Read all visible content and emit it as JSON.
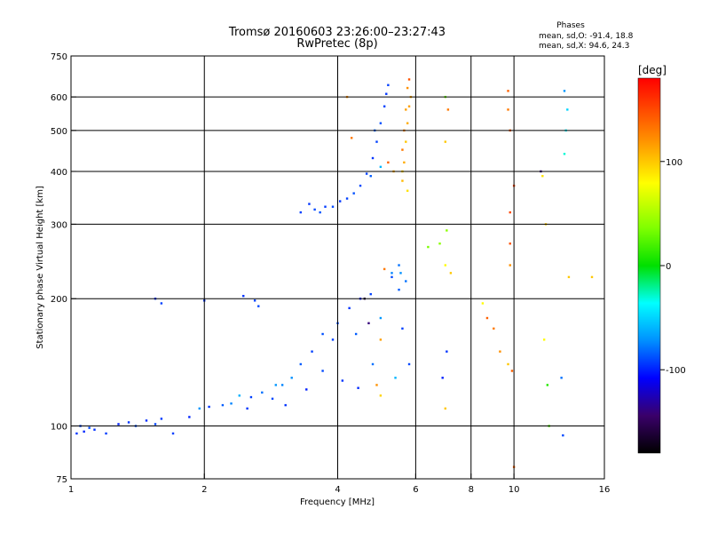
{
  "chart_data": {
    "type": "scatter",
    "title": "Tromsø 20160603 23:26:00–23:27:43",
    "subtitle": "RwPretec (8p)",
    "stats": {
      "heading": "Phases",
      "line_o": "mean, sd,O: -91.4, 18.8",
      "line_x": "mean, sd,X:  94.6, 24.3"
    },
    "xlabel": "Frequency [MHz]",
    "ylabel": "Stationary phase Virtual Height [km]",
    "x_scale": "log",
    "y_scale": "log",
    "xlim": [
      1,
      16
    ],
    "ylim": [
      75,
      750
    ],
    "x_ticks": [
      1,
      2,
      4,
      6,
      8,
      10,
      16
    ],
    "x_tick_labels": [
      "1",
      "2",
      "4",
      "6",
      "8",
      "10",
      "16"
    ],
    "y_ticks": [
      75,
      100,
      200,
      300,
      400,
      500,
      600,
      750
    ],
    "y_tick_labels": [
      "75",
      "100",
      "200",
      "300",
      "400",
      "500",
      "600",
      "750"
    ],
    "grid": true,
    "colorbar": {
      "label": "[deg]",
      "range": [
        -180,
        180
      ],
      "ticks": [
        100,
        0,
        -100
      ],
      "tick_labels": [
        "100",
        "0",
        "-100"
      ]
    },
    "series": [
      {
        "name": "",
        "points": [
          [
            1.03,
            96,
            -95
          ],
          [
            1.05,
            100,
            -92
          ],
          [
            1.07,
            97,
            -98
          ],
          [
            1.1,
            99,
            -90
          ],
          [
            1.13,
            98,
            -96
          ],
          [
            1.2,
            96,
            -93
          ],
          [
            1.28,
            101,
            -100
          ],
          [
            1.35,
            102,
            -95
          ],
          [
            1.4,
            100,
            -90
          ],
          [
            1.48,
            103,
            -97
          ],
          [
            1.55,
            101,
            -92
          ],
          [
            1.6,
            104,
            -94
          ],
          [
            1.7,
            96,
            -92
          ],
          [
            1.85,
            105,
            -99
          ],
          [
            1.95,
            110,
            -70
          ],
          [
            2.05,
            111,
            -95
          ],
          [
            2.2,
            112,
            -85
          ],
          [
            2.3,
            113,
            -75
          ],
          [
            2.4,
            118,
            -62
          ],
          [
            2.5,
            110,
            -95
          ],
          [
            2.55,
            117,
            -92
          ],
          [
            2.7,
            120,
            -80
          ],
          [
            2.85,
            116,
            -90
          ],
          [
            2.9,
            125,
            -70
          ],
          [
            3.0,
            125,
            -75
          ],
          [
            3.05,
            112,
            -95
          ],
          [
            3.15,
            130,
            -72
          ],
          [
            3.3,
            140,
            -85
          ],
          [
            3.4,
            122,
            -100
          ],
          [
            3.5,
            150,
            -92
          ],
          [
            3.7,
            135,
            -90
          ],
          [
            3.7,
            165,
            -88
          ],
          [
            3.9,
            160,
            -92
          ],
          [
            4.0,
            175,
            -90
          ],
          [
            4.1,
            128,
            -95
          ],
          [
            4.25,
            190,
            -95
          ],
          [
            4.4,
            165,
            -85
          ],
          [
            4.45,
            123,
            -98
          ],
          [
            4.5,
            200,
            -100
          ],
          [
            4.75,
            205,
            -92
          ],
          [
            4.8,
            140,
            -80
          ],
          [
            4.9,
            125,
            120
          ],
          [
            5.0,
            180,
            -70
          ],
          [
            5.1,
            235,
            130
          ],
          [
            5.3,
            230,
            -75
          ],
          [
            5.4,
            130,
            -60
          ],
          [
            1.55,
            200,
            -95
          ],
          [
            1.6,
            195,
            -92
          ],
          [
            2.0,
            198,
            -95
          ],
          [
            2.45,
            203,
            -95
          ],
          [
            2.6,
            198,
            -92
          ],
          [
            2.65,
            192,
            -90
          ],
          [
            5.3,
            225,
            -90
          ],
          [
            5.5,
            210,
            -85
          ],
          [
            5.5,
            240,
            -80
          ],
          [
            5.55,
            230,
            -72
          ],
          [
            5.6,
            170,
            -92
          ],
          [
            5.7,
            220,
            -80
          ],
          [
            5.8,
            140,
            -90
          ],
          [
            3.3,
            320,
            -92
          ],
          [
            3.45,
            335,
            -95
          ],
          [
            3.55,
            325,
            -90
          ],
          [
            3.65,
            320,
            -88
          ],
          [
            3.75,
            330,
            -93
          ],
          [
            3.9,
            330,
            -90
          ],
          [
            4.05,
            340,
            -95
          ],
          [
            4.2,
            345,
            -92
          ],
          [
            4.35,
            355,
            -88
          ],
          [
            4.5,
            370,
            -90
          ],
          [
            4.65,
            395,
            -92
          ],
          [
            4.8,
            430,
            -95
          ],
          [
            4.9,
            470,
            -92
          ],
          [
            5.0,
            520,
            -88
          ],
          [
            5.1,
            570,
            -92
          ],
          [
            5.15,
            610,
            -95
          ],
          [
            5.2,
            640,
            -92
          ],
          [
            4.75,
            390,
            -85
          ],
          [
            5.0,
            410,
            -60
          ],
          [
            4.85,
            500,
            -82
          ],
          [
            5.2,
            420,
            140
          ],
          [
            5.35,
            400,
            110
          ],
          [
            5.6,
            380,
            105
          ],
          [
            5.65,
            420,
            110
          ],
          [
            5.7,
            470,
            100
          ],
          [
            5.75,
            520,
            110
          ],
          [
            5.8,
            570,
            115
          ],
          [
            5.85,
            600,
            112
          ],
          [
            5.6,
            450,
            130
          ],
          [
            5.65,
            500,
            125
          ],
          [
            5.7,
            560,
            115
          ],
          [
            5.75,
            630,
            120
          ],
          [
            5.8,
            660,
            145
          ],
          [
            5.6,
            400,
            95
          ],
          [
            5.75,
            360,
            90
          ],
          [
            7.0,
            600,
            30
          ],
          [
            7.1,
            560,
            130
          ],
          [
            7.0,
            470,
            100
          ],
          [
            7.05,
            290,
            40
          ],
          [
            6.8,
            270,
            40
          ],
          [
            7.0,
            240,
            80
          ],
          [
            7.2,
            230,
            100
          ],
          [
            6.4,
            265,
            35
          ],
          [
            7.05,
            150,
            -95
          ],
          [
            6.9,
            130,
            -100
          ],
          [
            7.0,
            110,
            100
          ],
          [
            8.5,
            195,
            80
          ],
          [
            8.7,
            180,
            140
          ],
          [
            9.0,
            170,
            130
          ],
          [
            9.3,
            150,
            120
          ],
          [
            9.7,
            140,
            100
          ],
          [
            9.7,
            620,
            140
          ],
          [
            9.7,
            560,
            130
          ],
          [
            9.8,
            500,
            140
          ],
          [
            9.8,
            320,
            150
          ],
          [
            9.8,
            270,
            145
          ],
          [
            10.0,
            370,
            150
          ],
          [
            9.8,
            240,
            120
          ],
          [
            9.9,
            135,
            140
          ],
          [
            10.0,
            80,
            140
          ],
          [
            11.5,
            400,
            -140
          ],
          [
            11.6,
            390,
            90
          ],
          [
            11.8,
            300,
            100
          ],
          [
            11.7,
            160,
            80
          ],
          [
            11.9,
            125,
            10
          ],
          [
            12.0,
            100,
            20
          ],
          [
            13.0,
            620,
            -70
          ],
          [
            13.2,
            560,
            -50
          ],
          [
            13.1,
            500,
            -40
          ],
          [
            13.0,
            440,
            -30
          ],
          [
            12.8,
            130,
            -80
          ],
          [
            12.9,
            95,
            -90
          ],
          [
            13.3,
            225,
            100
          ],
          [
            15.0,
            225,
            100
          ],
          [
            4.2,
            600,
            120
          ],
          [
            4.3,
            480,
            130
          ],
          [
            4.6,
            200,
            -160
          ],
          [
            4.7,
            175,
            -140
          ],
          [
            5.0,
            160,
            115
          ],
          [
            5.0,
            118,
            95
          ]
        ]
      }
    ]
  }
}
